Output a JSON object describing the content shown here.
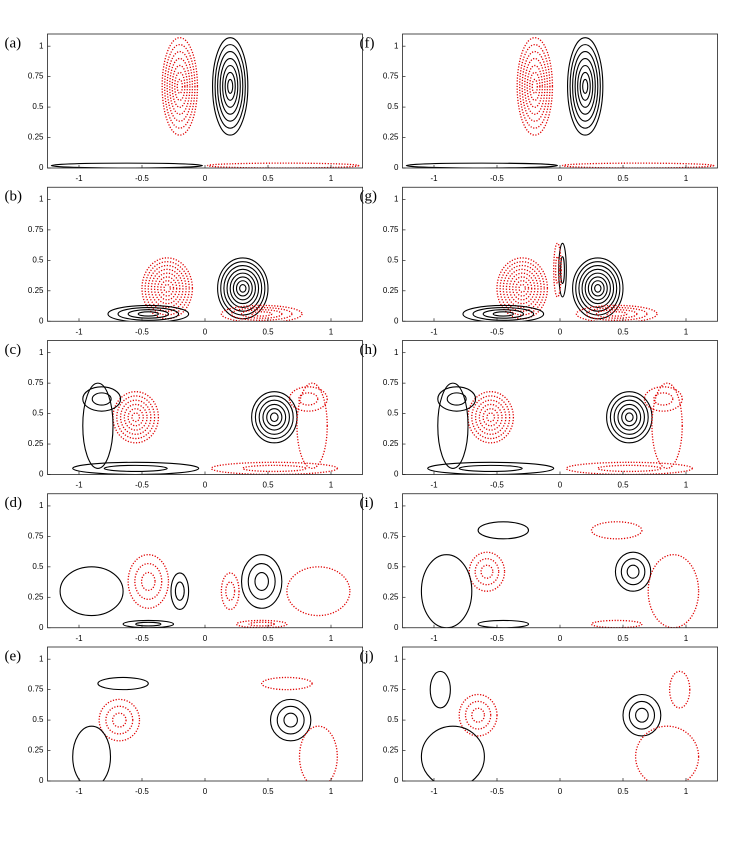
{
  "chart_data": [
    {
      "type": "contour",
      "title": "(a)",
      "xlim": [
        -1.25,
        1.25
      ],
      "ylim": [
        0,
        1.1
      ],
      "xticks": [
        -1,
        -0.5,
        0,
        0.5,
        1
      ],
      "yticks": [
        0,
        0.25,
        0.5,
        0.75,
        1
      ]
    },
    {
      "type": "contour",
      "title": "(b)",
      "xlim": [
        -1.25,
        1.25
      ],
      "ylim": [
        0,
        1.1
      ],
      "xticks": [
        -1,
        -0.5,
        0,
        0.5,
        1
      ],
      "yticks": [
        0,
        0.25,
        0.5,
        0.75,
        1
      ]
    },
    {
      "type": "contour",
      "title": "(c)",
      "xlim": [
        -1.25,
        1.25
      ],
      "ylim": [
        0,
        1.1
      ],
      "xticks": [
        -1,
        -0.5,
        0,
        0.5,
        1
      ],
      "yticks": [
        0,
        0.25,
        0.5,
        0.75,
        1
      ]
    },
    {
      "type": "contour",
      "title": "(d)",
      "xlim": [
        -1.25,
        1.25
      ],
      "ylim": [
        0,
        1.1
      ],
      "xticks": [
        -1,
        -0.5,
        0,
        0.5,
        1
      ],
      "yticks": [
        0,
        0.25,
        0.5,
        0.75,
        1
      ]
    },
    {
      "type": "contour",
      "title": "(e)",
      "xlim": [
        -1.25,
        1.25
      ],
      "ylim": [
        0,
        1.1
      ],
      "xticks": [
        -1,
        -0.5,
        0,
        0.5,
        1
      ],
      "yticks": [
        0,
        0.25,
        0.5,
        0.75,
        1
      ]
    },
    {
      "type": "contour",
      "title": "(f)",
      "xlim": [
        -1.25,
        1.25
      ],
      "ylim": [
        0,
        1.1
      ],
      "xticks": [
        -1,
        -0.5,
        0,
        0.5,
        1
      ],
      "yticks": [
        0,
        0.25,
        0.5,
        0.75,
        1
      ]
    },
    {
      "type": "contour",
      "title": "(g)",
      "xlim": [
        -1.25,
        1.25
      ],
      "ylim": [
        0,
        1.1
      ],
      "xticks": [
        -1,
        -0.5,
        0,
        0.5,
        1
      ],
      "yticks": [
        0,
        0.25,
        0.5,
        0.75,
        1
      ]
    },
    {
      "type": "contour",
      "title": "(h)",
      "xlim": [
        -1.25,
        1.25
      ],
      "ylim": [
        0,
        1.1
      ],
      "xticks": [
        -1,
        -0.5,
        0,
        0.5,
        1
      ],
      "yticks": [
        0,
        0.25,
        0.5,
        0.75,
        1
      ]
    },
    {
      "type": "contour",
      "title": "(i)",
      "xlim": [
        -1.25,
        1.25
      ],
      "ylim": [
        0,
        1.1
      ],
      "xticks": [
        -1,
        -0.5,
        0,
        0.5,
        1
      ],
      "yticks": [
        0,
        0.25,
        0.5,
        0.75,
        1
      ]
    },
    {
      "type": "contour",
      "title": "(j)",
      "xlim": [
        -1.25,
        1.25
      ],
      "ylim": [
        0,
        1.1
      ],
      "xticks": [
        -1,
        -0.5,
        0,
        0.5,
        1
      ],
      "yticks": [
        0,
        0.25,
        0.5,
        0.75,
        1
      ]
    }
  ]
}
